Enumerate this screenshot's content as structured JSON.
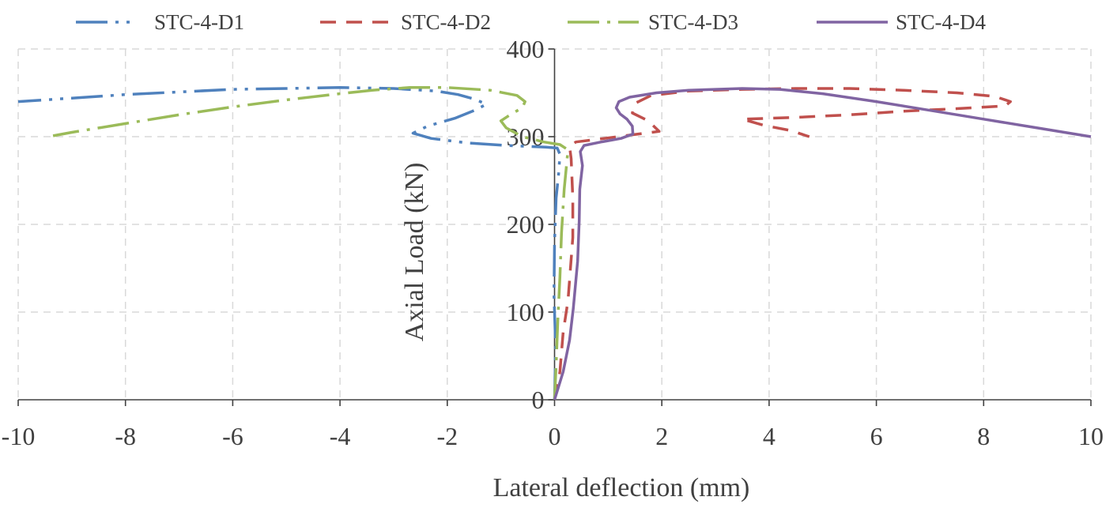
{
  "chart_data": {
    "type": "line",
    "xlabel": "Lateral deflection (mm)",
    "ylabel": "Axial Load (kN)",
    "xlim": [
      -10,
      10
    ],
    "ylim": [
      0,
      400
    ],
    "xticks": [
      -10,
      -8,
      -6,
      -4,
      -2,
      0,
      2,
      4,
      6,
      8,
      10
    ],
    "yticks": [
      0,
      100,
      200,
      300,
      400
    ],
    "grid": true,
    "legend_position": "top",
    "series": [
      {
        "name": "STC-4-D1",
        "color": "#4F81BD",
        "line_style": "dash-dot-dot",
        "points": [
          [
            0,
            0
          ],
          [
            0.02,
            60
          ],
          [
            -0.01,
            120
          ],
          [
            0,
            180
          ],
          [
            0.03,
            230
          ],
          [
            0.08,
            260
          ],
          [
            0.1,
            280
          ],
          [
            0.05,
            287
          ],
          [
            -0.16,
            288
          ],
          [
            -0.9,
            290
          ],
          [
            -1.64,
            293
          ],
          [
            -2.3,
            298
          ],
          [
            -2.64,
            304
          ],
          [
            -2.37,
            312
          ],
          [
            -1.86,
            321
          ],
          [
            -1.49,
            330
          ],
          [
            -1.27,
            337
          ],
          [
            -1.5,
            343
          ],
          [
            -1.8,
            348
          ],
          [
            -2.2,
            352
          ],
          [
            -3,
            355
          ],
          [
            -4,
            356
          ],
          [
            -5,
            355
          ],
          [
            -6,
            354
          ],
          [
            -7,
            351
          ],
          [
            -8,
            348
          ],
          [
            -9,
            344
          ],
          [
            -10,
            340
          ]
        ]
      },
      {
        "name": "STC-4-D2",
        "color": "#C0504D",
        "line_style": "dashed",
        "points": [
          [
            0,
            0
          ],
          [
            0.1,
            32
          ],
          [
            0.16,
            77
          ],
          [
            0.25,
            113
          ],
          [
            0.34,
            185
          ],
          [
            0.34,
            230
          ],
          [
            0.31,
            275
          ],
          [
            0.28,
            289
          ],
          [
            0.4,
            294
          ],
          [
            0.8,
            297
          ],
          [
            1.3,
            301
          ],
          [
            1.95,
            306
          ],
          [
            1.75,
            318
          ],
          [
            1.45,
            327
          ],
          [
            1.5,
            338
          ],
          [
            1.8,
            347
          ],
          [
            2.5,
            352
          ],
          [
            3.5,
            354
          ],
          [
            4.5,
            355
          ],
          [
            5.5,
            355
          ],
          [
            6.5,
            353
          ],
          [
            7.5,
            350
          ],
          [
            8.2,
            346
          ],
          [
            8.5,
            340
          ],
          [
            8.4,
            335
          ],
          [
            7.5,
            332
          ],
          [
            6.5,
            329
          ],
          [
            5.5,
            325
          ],
          [
            4.5,
            322
          ],
          [
            3.5,
            320
          ],
          [
            3.9,
            313
          ],
          [
            4.4,
            307
          ],
          [
            4.75,
            300
          ]
        ]
      },
      {
        "name": "STC-4-D3",
        "color": "#9BBB59",
        "line_style": "dash-dot",
        "points": [
          [
            0,
            0
          ],
          [
            0.03,
            40
          ],
          [
            0.06,
            90
          ],
          [
            0.1,
            140
          ],
          [
            0.13,
            190
          ],
          [
            0.18,
            240
          ],
          [
            0.25,
            285
          ],
          [
            0.1,
            291
          ],
          [
            -0.2,
            294
          ],
          [
            -0.6,
            300
          ],
          [
            -0.9,
            310
          ],
          [
            -1.0,
            318
          ],
          [
            -0.8,
            326
          ],
          [
            -0.6,
            333
          ],
          [
            -0.55,
            340
          ],
          [
            -0.7,
            347
          ],
          [
            -1.2,
            353
          ],
          [
            -2,
            356
          ],
          [
            -2.7,
            356
          ],
          [
            -3.4,
            353
          ],
          [
            -4,
            349
          ],
          [
            -5,
            342
          ],
          [
            -6,
            334
          ],
          [
            -7,
            325
          ],
          [
            -8,
            315
          ],
          [
            -9,
            305
          ],
          [
            -9.35,
            301
          ]
        ]
      },
      {
        "name": "STC-4-D4",
        "color": "#8064A2",
        "line_style": "solid",
        "points": [
          [
            0,
            0
          ],
          [
            0.16,
            32
          ],
          [
            0.28,
            68
          ],
          [
            0.35,
            104
          ],
          [
            0.43,
            158
          ],
          [
            0.46,
            204
          ],
          [
            0.47,
            240
          ],
          [
            0.52,
            267
          ],
          [
            0.48,
            283
          ],
          [
            0.55,
            290
          ],
          [
            0.87,
            294
          ],
          [
            1.24,
            298
          ],
          [
            1.46,
            303
          ],
          [
            1.45,
            312
          ],
          [
            1.35,
            320
          ],
          [
            1.22,
            326
          ],
          [
            1.15,
            333
          ],
          [
            1.2,
            340
          ],
          [
            1.4,
            345
          ],
          [
            1.9,
            350
          ],
          [
            2.5,
            353
          ],
          [
            3.5,
            355
          ],
          [
            4.2,
            354
          ],
          [
            5,
            349
          ],
          [
            6,
            340
          ],
          [
            7,
            330
          ],
          [
            8,
            320
          ],
          [
            9,
            310
          ],
          [
            10,
            300
          ]
        ]
      }
    ]
  }
}
